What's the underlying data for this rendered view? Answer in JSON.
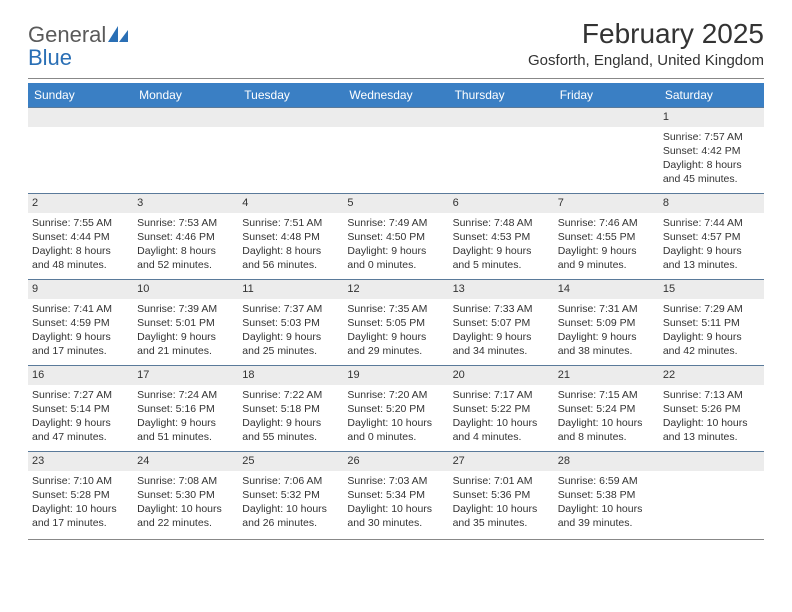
{
  "logo": {
    "text_gray": "General",
    "text_blue": "Blue"
  },
  "title": "February 2025",
  "location": "Gosforth, England, United Kingdom",
  "colors": {
    "header_bg": "#3a7fc4",
    "daynum_bg": "#ececec",
    "border": "#5a7a9a",
    "text": "#333333"
  },
  "weekdays": [
    "Sunday",
    "Monday",
    "Tuesday",
    "Wednesday",
    "Thursday",
    "Friday",
    "Saturday"
  ],
  "weeks": [
    [
      {
        "n": "",
        "sunrise": "",
        "sunset": "",
        "daylight1": "",
        "daylight2": ""
      },
      {
        "n": "",
        "sunrise": "",
        "sunset": "",
        "daylight1": "",
        "daylight2": ""
      },
      {
        "n": "",
        "sunrise": "",
        "sunset": "",
        "daylight1": "",
        "daylight2": ""
      },
      {
        "n": "",
        "sunrise": "",
        "sunset": "",
        "daylight1": "",
        "daylight2": ""
      },
      {
        "n": "",
        "sunrise": "",
        "sunset": "",
        "daylight1": "",
        "daylight2": ""
      },
      {
        "n": "",
        "sunrise": "",
        "sunset": "",
        "daylight1": "",
        "daylight2": ""
      },
      {
        "n": "1",
        "sunrise": "Sunrise: 7:57 AM",
        "sunset": "Sunset: 4:42 PM",
        "daylight1": "Daylight: 8 hours",
        "daylight2": "and 45 minutes."
      }
    ],
    [
      {
        "n": "2",
        "sunrise": "Sunrise: 7:55 AM",
        "sunset": "Sunset: 4:44 PM",
        "daylight1": "Daylight: 8 hours",
        "daylight2": "and 48 minutes."
      },
      {
        "n": "3",
        "sunrise": "Sunrise: 7:53 AM",
        "sunset": "Sunset: 4:46 PM",
        "daylight1": "Daylight: 8 hours",
        "daylight2": "and 52 minutes."
      },
      {
        "n": "4",
        "sunrise": "Sunrise: 7:51 AM",
        "sunset": "Sunset: 4:48 PM",
        "daylight1": "Daylight: 8 hours",
        "daylight2": "and 56 minutes."
      },
      {
        "n": "5",
        "sunrise": "Sunrise: 7:49 AM",
        "sunset": "Sunset: 4:50 PM",
        "daylight1": "Daylight: 9 hours",
        "daylight2": "and 0 minutes."
      },
      {
        "n": "6",
        "sunrise": "Sunrise: 7:48 AM",
        "sunset": "Sunset: 4:53 PM",
        "daylight1": "Daylight: 9 hours",
        "daylight2": "and 5 minutes."
      },
      {
        "n": "7",
        "sunrise": "Sunrise: 7:46 AM",
        "sunset": "Sunset: 4:55 PM",
        "daylight1": "Daylight: 9 hours",
        "daylight2": "and 9 minutes."
      },
      {
        "n": "8",
        "sunrise": "Sunrise: 7:44 AM",
        "sunset": "Sunset: 4:57 PM",
        "daylight1": "Daylight: 9 hours",
        "daylight2": "and 13 minutes."
      }
    ],
    [
      {
        "n": "9",
        "sunrise": "Sunrise: 7:41 AM",
        "sunset": "Sunset: 4:59 PM",
        "daylight1": "Daylight: 9 hours",
        "daylight2": "and 17 minutes."
      },
      {
        "n": "10",
        "sunrise": "Sunrise: 7:39 AM",
        "sunset": "Sunset: 5:01 PM",
        "daylight1": "Daylight: 9 hours",
        "daylight2": "and 21 minutes."
      },
      {
        "n": "11",
        "sunrise": "Sunrise: 7:37 AM",
        "sunset": "Sunset: 5:03 PM",
        "daylight1": "Daylight: 9 hours",
        "daylight2": "and 25 minutes."
      },
      {
        "n": "12",
        "sunrise": "Sunrise: 7:35 AM",
        "sunset": "Sunset: 5:05 PM",
        "daylight1": "Daylight: 9 hours",
        "daylight2": "and 29 minutes."
      },
      {
        "n": "13",
        "sunrise": "Sunrise: 7:33 AM",
        "sunset": "Sunset: 5:07 PM",
        "daylight1": "Daylight: 9 hours",
        "daylight2": "and 34 minutes."
      },
      {
        "n": "14",
        "sunrise": "Sunrise: 7:31 AM",
        "sunset": "Sunset: 5:09 PM",
        "daylight1": "Daylight: 9 hours",
        "daylight2": "and 38 minutes."
      },
      {
        "n": "15",
        "sunrise": "Sunrise: 7:29 AM",
        "sunset": "Sunset: 5:11 PM",
        "daylight1": "Daylight: 9 hours",
        "daylight2": "and 42 minutes."
      }
    ],
    [
      {
        "n": "16",
        "sunrise": "Sunrise: 7:27 AM",
        "sunset": "Sunset: 5:14 PM",
        "daylight1": "Daylight: 9 hours",
        "daylight2": "and 47 minutes."
      },
      {
        "n": "17",
        "sunrise": "Sunrise: 7:24 AM",
        "sunset": "Sunset: 5:16 PM",
        "daylight1": "Daylight: 9 hours",
        "daylight2": "and 51 minutes."
      },
      {
        "n": "18",
        "sunrise": "Sunrise: 7:22 AM",
        "sunset": "Sunset: 5:18 PM",
        "daylight1": "Daylight: 9 hours",
        "daylight2": "and 55 minutes."
      },
      {
        "n": "19",
        "sunrise": "Sunrise: 7:20 AM",
        "sunset": "Sunset: 5:20 PM",
        "daylight1": "Daylight: 10 hours",
        "daylight2": "and 0 minutes."
      },
      {
        "n": "20",
        "sunrise": "Sunrise: 7:17 AM",
        "sunset": "Sunset: 5:22 PM",
        "daylight1": "Daylight: 10 hours",
        "daylight2": "and 4 minutes."
      },
      {
        "n": "21",
        "sunrise": "Sunrise: 7:15 AM",
        "sunset": "Sunset: 5:24 PM",
        "daylight1": "Daylight: 10 hours",
        "daylight2": "and 8 minutes."
      },
      {
        "n": "22",
        "sunrise": "Sunrise: 7:13 AM",
        "sunset": "Sunset: 5:26 PM",
        "daylight1": "Daylight: 10 hours",
        "daylight2": "and 13 minutes."
      }
    ],
    [
      {
        "n": "23",
        "sunrise": "Sunrise: 7:10 AM",
        "sunset": "Sunset: 5:28 PM",
        "daylight1": "Daylight: 10 hours",
        "daylight2": "and 17 minutes."
      },
      {
        "n": "24",
        "sunrise": "Sunrise: 7:08 AM",
        "sunset": "Sunset: 5:30 PM",
        "daylight1": "Daylight: 10 hours",
        "daylight2": "and 22 minutes."
      },
      {
        "n": "25",
        "sunrise": "Sunrise: 7:06 AM",
        "sunset": "Sunset: 5:32 PM",
        "daylight1": "Daylight: 10 hours",
        "daylight2": "and 26 minutes."
      },
      {
        "n": "26",
        "sunrise": "Sunrise: 7:03 AM",
        "sunset": "Sunset: 5:34 PM",
        "daylight1": "Daylight: 10 hours",
        "daylight2": "and 30 minutes."
      },
      {
        "n": "27",
        "sunrise": "Sunrise: 7:01 AM",
        "sunset": "Sunset: 5:36 PM",
        "daylight1": "Daylight: 10 hours",
        "daylight2": "and 35 minutes."
      },
      {
        "n": "28",
        "sunrise": "Sunrise: 6:59 AM",
        "sunset": "Sunset: 5:38 PM",
        "daylight1": "Daylight: 10 hours",
        "daylight2": "and 39 minutes."
      },
      {
        "n": "",
        "sunrise": "",
        "sunset": "",
        "daylight1": "",
        "daylight2": ""
      }
    ]
  ]
}
